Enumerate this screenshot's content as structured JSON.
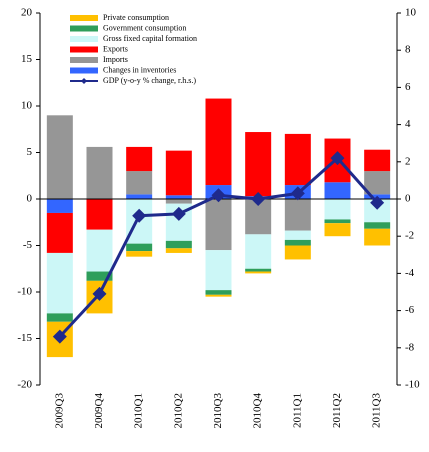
{
  "chart_data": {
    "type": "bar",
    "stacked": true,
    "categories": [
      "2009Q3",
      "2009Q4",
      "2010Q1",
      "2010Q2",
      "2010Q3",
      "2010Q4",
      "2011Q1",
      "2011Q2",
      "2011Q3"
    ],
    "series": [
      {
        "name": "Private consumption",
        "color": "#ffc000",
        "values": [
          -3.8,
          -3.5,
          -0.6,
          -0.5,
          -0.2,
          -0.2,
          -1.5,
          -1.4,
          -1.8
        ]
      },
      {
        "name": "Government consumption",
        "color": "#2e9e5b",
        "values": [
          -0.9,
          -1.0,
          -0.8,
          -0.8,
          -0.5,
          -0.3,
          -0.6,
          -0.4,
          -0.7
        ]
      },
      {
        "name": "Gross fixed capital formation",
        "color": "#ccf7f7",
        "values": [
          -6.5,
          -4.5,
          -4.8,
          -4.0,
          -4.3,
          -3.7,
          -1.0,
          -2.2,
          -2.5
        ]
      },
      {
        "name": "Exports",
        "color": "#ff0000",
        "values": [
          -4.3,
          -3.3,
          2.6,
          4.8,
          9.3,
          6.9,
          5.5,
          4.7,
          2.3
        ]
      },
      {
        "name": "Imports",
        "color": "#969696",
        "values": [
          9.0,
          5.6,
          2.5,
          -0.5,
          -5.5,
          -3.8,
          -3.4,
          0.0,
          2.5
        ]
      },
      {
        "name": "Changes in inventories",
        "color": "#3366ff",
        "values": [
          -1.5,
          0.0,
          0.5,
          0.4,
          1.5,
          0.3,
          1.5,
          1.8,
          0.5
        ]
      },
      {
        "name": "GDP (y-o-y % change, r.h.s.)",
        "type": "line",
        "axis": "y2",
        "color": "#1f2a8c",
        "values": [
          -7.4,
          -5.1,
          -0.9,
          -0.8,
          0.2,
          0.0,
          0.3,
          2.2,
          -0.2
        ]
      }
    ],
    "ylim": [
      -20,
      20
    ],
    "yticks": [
      -20,
      -15,
      -10,
      -5,
      0,
      5,
      10,
      15,
      20
    ],
    "y2lim": [
      -10,
      10
    ],
    "y2ticks": [
      -10,
      -8,
      -6,
      -4,
      -2,
      0,
      2,
      4,
      6,
      8,
      10
    ]
  }
}
